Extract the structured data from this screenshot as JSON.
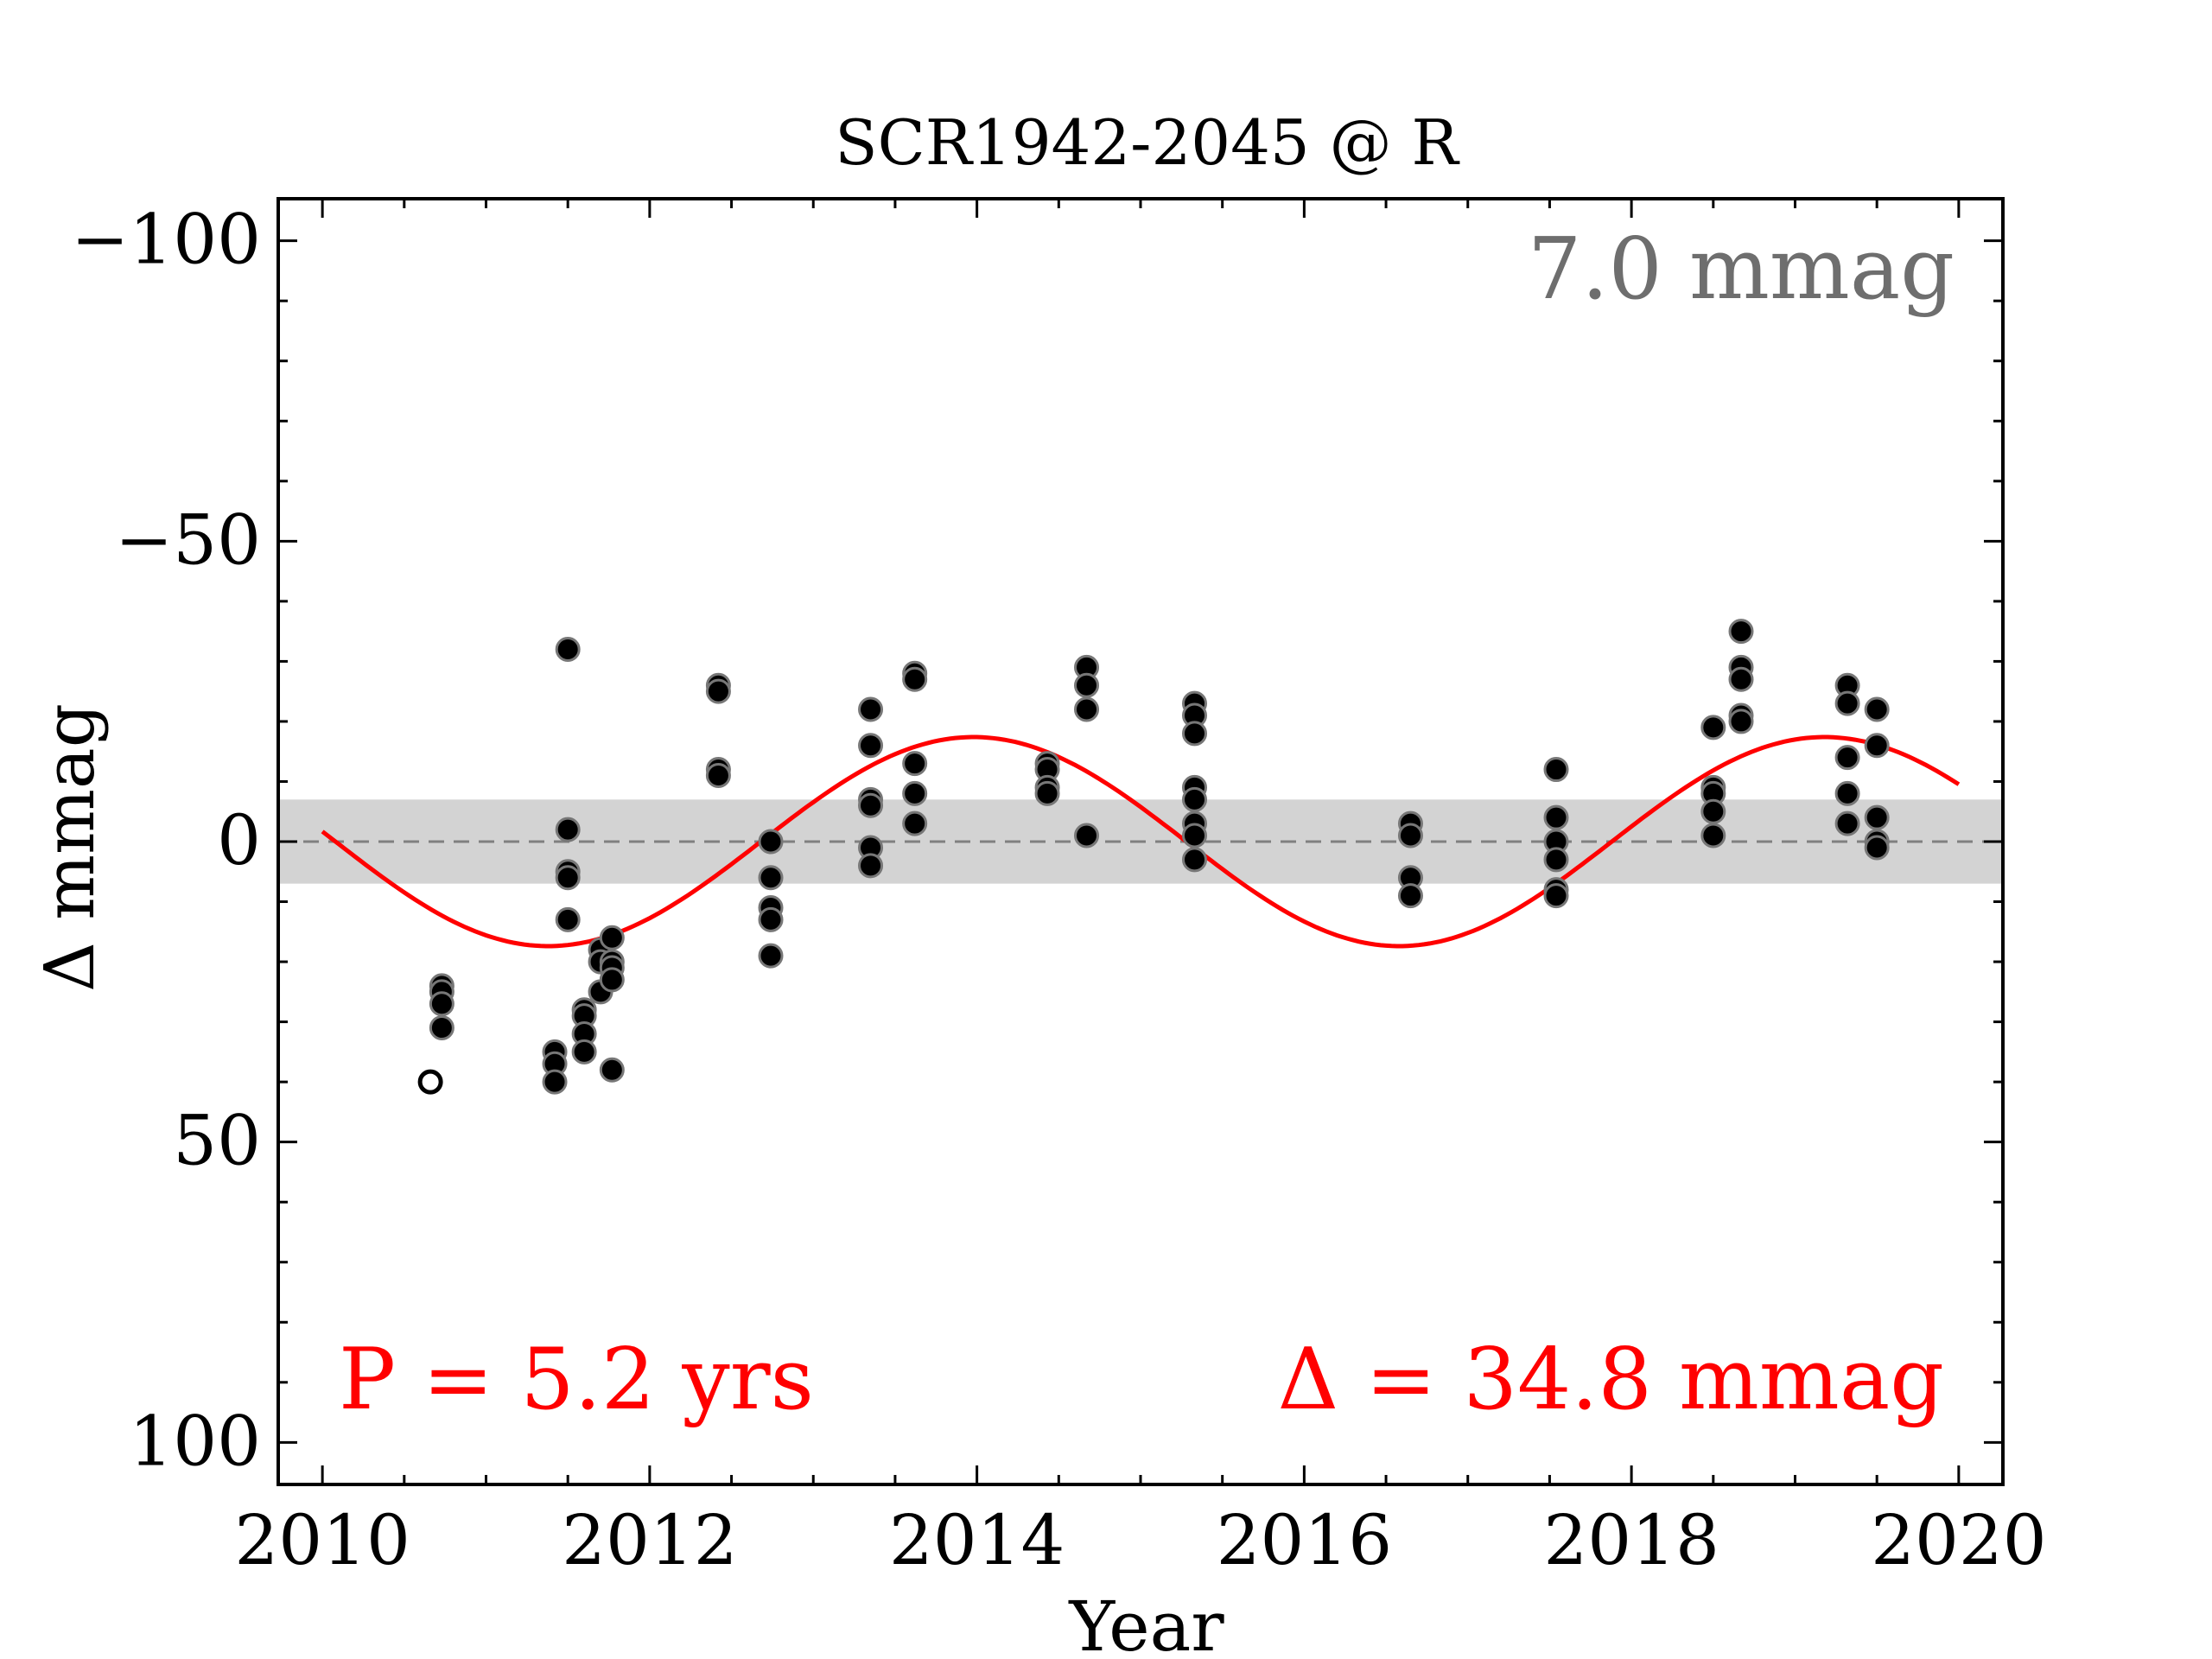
{
  "chart_data": {
    "type": "scatter",
    "title": "SCR1942-2045 @ R",
    "xlabel": "Year",
    "ylabel": "Δ  mmag",
    "xlim": [
      2009.73,
      2020.27
    ],
    "ylim": [
      -107,
      107
    ],
    "y_inverted": true,
    "xticks": [
      2010,
      2012,
      2014,
      2016,
      2018,
      2020
    ],
    "xtick_labels": [
      "2010",
      "2012",
      "2014",
      "2016",
      "2018",
      "2020"
    ],
    "yticks": [
      -100,
      -50,
      0,
      50,
      100
    ],
    "ytick_labels": [
      "−100",
      "−50",
      "0",
      "50",
      "100"
    ],
    "band_halfwidth": 7.0,
    "band_label": "7.0 mmag",
    "fit_period_label": "P = 5.2 yrs",
    "fit_amplitude_label": "Δ = 34.8 mmag",
    "fit": {
      "period": 5.2,
      "amplitude": 17.4,
      "peak_year": 2013.98,
      "x_start": 2010.0,
      "x_end": 2020.0
    },
    "colors": {
      "points": "#000000",
      "point_edge": "#777777",
      "fit": "#ff0000",
      "band": "#d3d3d3",
      "zero_line": "#808080",
      "band_label": "#6e6e6e",
      "fit_labels": "#ff0000"
    },
    "points": [
      {
        "x": 2010.73,
        "y": 24
      },
      {
        "x": 2010.73,
        "y": 25
      },
      {
        "x": 2010.73,
        "y": 27
      },
      {
        "x": 2010.73,
        "y": 31
      },
      {
        "x": 2011.42,
        "y": 35
      },
      {
        "x": 2011.42,
        "y": 37
      },
      {
        "x": 2011.42,
        "y": 40
      },
      {
        "x": 2011.5,
        "y": -32
      },
      {
        "x": 2011.5,
        "y": -2
      },
      {
        "x": 2011.5,
        "y": 5
      },
      {
        "x": 2011.5,
        "y": 6
      },
      {
        "x": 2011.5,
        "y": 13
      },
      {
        "x": 2011.6,
        "y": 28
      },
      {
        "x": 2011.6,
        "y": 29
      },
      {
        "x": 2011.6,
        "y": 32
      },
      {
        "x": 2011.6,
        "y": 35
      },
      {
        "x": 2011.7,
        "y": 18
      },
      {
        "x": 2011.7,
        "y": 20
      },
      {
        "x": 2011.7,
        "y": 25
      },
      {
        "x": 2011.77,
        "y": 16
      },
      {
        "x": 2011.77,
        "y": 20
      },
      {
        "x": 2011.77,
        "y": 21
      },
      {
        "x": 2011.77,
        "y": 23
      },
      {
        "x": 2011.77,
        "y": 38
      },
      {
        "x": 2012.42,
        "y": -26
      },
      {
        "x": 2012.42,
        "y": -25
      },
      {
        "x": 2012.42,
        "y": -12
      },
      {
        "x": 2012.42,
        "y": -11
      },
      {
        "x": 2012.74,
        "y": 0
      },
      {
        "x": 2012.74,
        "y": 6
      },
      {
        "x": 2012.74,
        "y": 11
      },
      {
        "x": 2012.74,
        "y": 13
      },
      {
        "x": 2012.74,
        "y": 19
      },
      {
        "x": 2013.35,
        "y": -22
      },
      {
        "x": 2013.35,
        "y": -16
      },
      {
        "x": 2013.35,
        "y": -7
      },
      {
        "x": 2013.35,
        "y": -6
      },
      {
        "x": 2013.35,
        "y": 1
      },
      {
        "x": 2013.35,
        "y": 4
      },
      {
        "x": 2013.62,
        "y": -28
      },
      {
        "x": 2013.62,
        "y": -27
      },
      {
        "x": 2013.62,
        "y": -13
      },
      {
        "x": 2013.62,
        "y": -8
      },
      {
        "x": 2013.62,
        "y": -3
      },
      {
        "x": 2014.43,
        "y": -13
      },
      {
        "x": 2014.43,
        "y": -12
      },
      {
        "x": 2014.43,
        "y": -9
      },
      {
        "x": 2014.43,
        "y": -8
      },
      {
        "x": 2014.67,
        "y": -29
      },
      {
        "x": 2014.67,
        "y": -26
      },
      {
        "x": 2014.67,
        "y": -22
      },
      {
        "x": 2014.67,
        "y": -1
      },
      {
        "x": 2015.33,
        "y": -23
      },
      {
        "x": 2015.33,
        "y": -21
      },
      {
        "x": 2015.33,
        "y": -18
      },
      {
        "x": 2015.33,
        "y": -9
      },
      {
        "x": 2015.33,
        "y": -7
      },
      {
        "x": 2015.33,
        "y": -3
      },
      {
        "x": 2015.33,
        "y": -1
      },
      {
        "x": 2015.33,
        "y": 3
      },
      {
        "x": 2016.65,
        "y": -3
      },
      {
        "x": 2016.65,
        "y": -1
      },
      {
        "x": 2016.65,
        "y": 6
      },
      {
        "x": 2016.65,
        "y": 9
      },
      {
        "x": 2017.54,
        "y": -12
      },
      {
        "x": 2017.54,
        "y": -4
      },
      {
        "x": 2017.54,
        "y": 0
      },
      {
        "x": 2017.54,
        "y": 3
      },
      {
        "x": 2017.54,
        "y": 8
      },
      {
        "x": 2017.54,
        "y": 9
      },
      {
        "x": 2018.5,
        "y": -19
      },
      {
        "x": 2018.5,
        "y": -9
      },
      {
        "x": 2018.5,
        "y": -8
      },
      {
        "x": 2018.5,
        "y": -5
      },
      {
        "x": 2018.5,
        "y": -1
      },
      {
        "x": 2018.67,
        "y": -35
      },
      {
        "x": 2018.67,
        "y": -29
      },
      {
        "x": 2018.67,
        "y": -27
      },
      {
        "x": 2018.67,
        "y": -21
      },
      {
        "x": 2018.67,
        "y": -20
      },
      {
        "x": 2019.32,
        "y": -26
      },
      {
        "x": 2019.32,
        "y": -23
      },
      {
        "x": 2019.32,
        "y": -14
      },
      {
        "x": 2019.32,
        "y": -8
      },
      {
        "x": 2019.32,
        "y": -3
      },
      {
        "x": 2019.5,
        "y": -22
      },
      {
        "x": 2019.5,
        "y": -16
      },
      {
        "x": 2019.5,
        "y": -4
      },
      {
        "x": 2019.5,
        "y": 0
      },
      {
        "x": 2019.5,
        "y": 1
      }
    ],
    "open_points": [
      {
        "x": 2010.66,
        "y": 40
      }
    ]
  }
}
